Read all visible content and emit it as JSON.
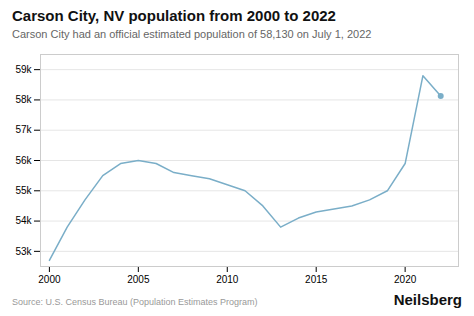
{
  "chart_data": {
    "type": "line",
    "title": "Carson City, NV population from 2000 to 2022",
    "subtitle": "Carson City had an official estimated population of 58,130 on July 1, 2022",
    "source": "Source: U.S. Census Bureau (Population Estimates Program)",
    "watermark": "Neilsberg",
    "x": [
      2000,
      2001,
      2002,
      2003,
      2004,
      2005,
      2006,
      2007,
      2008,
      2009,
      2010,
      2011,
      2012,
      2013,
      2014,
      2015,
      2016,
      2017,
      2018,
      2019,
      2020,
      2021,
      2022
    ],
    "values": [
      52700,
      53800,
      54700,
      55500,
      55900,
      56000,
      55900,
      55600,
      55500,
      55400,
      55200,
      55000,
      54500,
      53800,
      54100,
      54300,
      54400,
      54500,
      54700,
      55000,
      55900,
      58800,
      58130
    ],
    "color": "#7aaec8",
    "marker": "end",
    "xlim": [
      1999.5,
      2023.0
    ],
    "xticks": [
      2000,
      2005,
      2010,
      2015,
      2020
    ],
    "ylim": [
      52500,
      59500
    ],
    "yticks": [
      {
        "value": 53000,
        "label": "53k"
      },
      {
        "value": 54000,
        "label": "54k"
      },
      {
        "value": 55000,
        "label": "55k"
      },
      {
        "value": 56000,
        "label": "56k"
      },
      {
        "value": 57000,
        "label": "57k"
      },
      {
        "value": 58000,
        "label": "58k"
      },
      {
        "value": 59000,
        "label": "59k"
      }
    ],
    "grid": true
  }
}
